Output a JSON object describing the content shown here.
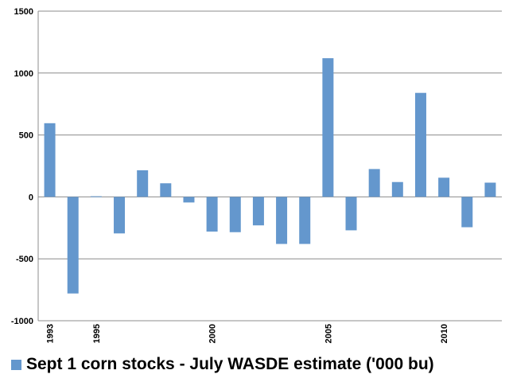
{
  "chart_data": {
    "type": "bar",
    "title": "",
    "xlabel": "",
    "ylabel": "",
    "ylim": [
      -1000,
      1500
    ],
    "yticks": [
      1500,
      1000,
      500,
      0,
      -500,
      -1000
    ],
    "x_tick_labels": [
      {
        "index": 0,
        "label": "1993"
      },
      {
        "index": 2,
        "label": "1995"
      },
      {
        "index": 7,
        "label": "2000"
      },
      {
        "index": 12,
        "label": "2005"
      },
      {
        "index": 17,
        "label": "2010"
      }
    ],
    "categories": [
      "1993",
      "1994",
      "1995",
      "1996",
      "1997",
      "1998",
      "1999",
      "2000",
      "2001",
      "2002",
      "2003",
      "2004",
      "2005",
      "2006",
      "2007",
      "2008",
      "2009",
      "2010",
      "2011",
      "2012"
    ],
    "series": [
      {
        "name": "Sept 1 corn stocks - July WASDE estimate ('000 bu)",
        "color": "#6497cd",
        "values": [
          595,
          -780,
          5,
          -295,
          215,
          110,
          -45,
          -280,
          -285,
          -230,
          -380,
          -380,
          1120,
          -270,
          225,
          120,
          840,
          155,
          -245,
          115
        ]
      }
    ],
    "grid": true,
    "legend_position": "bottom"
  }
}
